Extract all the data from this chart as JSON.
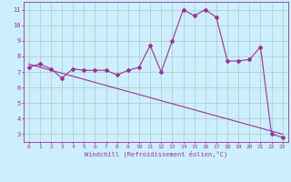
{
  "xlabel": "Windchill (Refroidissement éolien,°C)",
  "ylabel": "",
  "xlim": [
    -0.5,
    23.5
  ],
  "ylim": [
    2.5,
    11.5
  ],
  "xticks": [
    0,
    1,
    2,
    3,
    4,
    5,
    6,
    7,
    8,
    9,
    10,
    11,
    12,
    13,
    14,
    15,
    16,
    17,
    18,
    19,
    20,
    21,
    22,
    23
  ],
  "yticks": [
    3,
    4,
    5,
    6,
    7,
    8,
    9,
    10,
    11
  ],
  "background_color": "#cceeff",
  "grid_color": "#aaccbb",
  "line_color": "#993399",
  "line1_x": [
    0,
    1,
    2,
    3,
    4,
    5,
    6,
    7,
    8,
    9,
    10,
    11,
    12,
    13,
    14,
    15,
    16,
    17,
    18,
    19,
    20,
    21,
    22,
    23
  ],
  "line1_y": [
    7.3,
    7.5,
    7.2,
    6.6,
    7.2,
    7.1,
    7.1,
    7.1,
    6.8,
    7.1,
    7.3,
    8.7,
    7.0,
    9.0,
    11.0,
    10.6,
    11.0,
    10.5,
    7.7,
    7.7,
    7.8,
    8.6,
    3.0,
    2.8
  ],
  "line2_x": [
    0,
    23
  ],
  "line2_y": [
    7.5,
    3.0
  ],
  "marker": "D",
  "markersize": 2,
  "linewidth": 0.8,
  "tick_fontsize": 4.5,
  "xlabel_fontsize": 5.0
}
